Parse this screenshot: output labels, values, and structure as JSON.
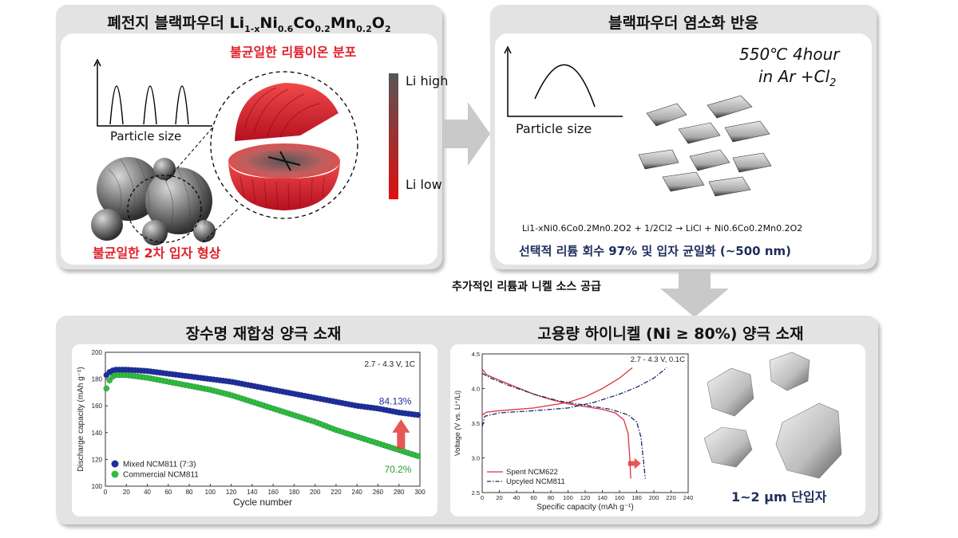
{
  "panel1": {
    "title_main": "폐전지 블랙파우더 Li",
    "title_sub1": "1-x",
    "title_ni": "Ni",
    "title_sub2": "0.6",
    "title_co": "Co",
    "title_sub3": "0.2",
    "title_mn": "Mn",
    "title_sub4": "0.2",
    "title_o": "O",
    "title_sub5": "2",
    "dist_label": "불균일한 리튬이온 분포",
    "particle_size_label": "Particle size",
    "li_high": "Li high",
    "li_low": "Li low",
    "shape_label": "불균일한 2차 입자 형상"
  },
  "panel2": {
    "title": "블랙파우더 염소화 반응",
    "particle_size_label": "Particle size",
    "condition_line1": "550℃ 4hour",
    "condition_line2_a": "in Ar +Cl",
    "condition_line2_sub": "2",
    "equation": "Li1-xNi0.6Co0.2Mn0.2O2 + 1/2Cl2 → LiCl + Ni0.6Co0.2Mn0.2O2",
    "result": "선택적 리튬 회수 97% 및 입자 균일화 (~500 nm)"
  },
  "arrow_label": "추가적인 리튬과 니켈 소스 공급",
  "panel3": {
    "title_left": "장수명 재합성 양극 소재",
    "title_right": "고용량 하이니켈 (Ni ≥ 80%) 양극 소재",
    "single_crystal_label": "1~2 μm 단입자"
  },
  "colors": {
    "blue_series": "#1f2f9a",
    "green_series": "#2fbf3a",
    "red_accent": "#e0202a",
    "navy_text": "#1f2d5c",
    "panel_gray": "#e3e3e3"
  },
  "chart_data": [
    {
      "type": "scatter",
      "annotation": "2.7 - 4.3 V, 1C",
      "xlabel": "Cycle number",
      "ylabel": "Discharge capacity (mAh g⁻¹)",
      "xlim": [
        0,
        300
      ],
      "ylim": [
        100,
        200
      ],
      "xticks": [
        0,
        20,
        40,
        60,
        80,
        100,
        120,
        140,
        160,
        180,
        200,
        220,
        240,
        260,
        280,
        300
      ],
      "yticks": [
        100,
        120,
        140,
        160,
        180,
        200
      ],
      "legend_position": "bottom-left",
      "series": [
        {
          "name": "Mixed NCM811 (7:3)",
          "color": "#1f2f9a",
          "retention_label": "84.13%",
          "points": [
            [
              1,
              183
            ],
            [
              5,
              186
            ],
            [
              10,
              187
            ],
            [
              20,
              187
            ],
            [
              40,
              186
            ],
            [
              60,
              184
            ],
            [
              80,
              182
            ],
            [
              100,
              180
            ],
            [
              120,
              178
            ],
            [
              140,
              175
            ],
            [
              160,
              172
            ],
            [
              180,
              169
            ],
            [
              200,
              166
            ],
            [
              220,
              163
            ],
            [
              240,
              160
            ],
            [
              260,
              158
            ],
            [
              280,
              155
            ],
            [
              300,
              153
            ]
          ]
        },
        {
          "name": "Commercial NCM811",
          "color": "#2fbf3a",
          "retention_label": "70.2%",
          "points": [
            [
              1,
              173
            ],
            [
              5,
              181
            ],
            [
              10,
              183
            ],
            [
              20,
              183
            ],
            [
              40,
              181
            ],
            [
              60,
              178
            ],
            [
              80,
              175
            ],
            [
              100,
              172
            ],
            [
              120,
              168
            ],
            [
              140,
              163
            ],
            [
              160,
              158
            ],
            [
              180,
              153
            ],
            [
              200,
              148
            ],
            [
              220,
              142
            ],
            [
              240,
              137
            ],
            [
              260,
              132
            ],
            [
              280,
              127
            ],
            [
              300,
              122
            ]
          ]
        }
      ]
    },
    {
      "type": "line",
      "annotation": "2.7 - 4.3 V, 0.1C",
      "xlabel": "Specific capacity (mAh g⁻¹)",
      "ylabel": "Voltage (V vs. Li⁺/Li)",
      "xlim": [
        0,
        240
      ],
      "ylim": [
        2.5,
        4.5
      ],
      "xticks": [
        0,
        20,
        40,
        60,
        80,
        100,
        120,
        140,
        160,
        180,
        200,
        220,
        240
      ],
      "yticks": [
        2.5,
        3.0,
        3.5,
        4.0,
        4.5
      ],
      "legend_position": "bottom-left",
      "series": [
        {
          "name": "Spent NCM622",
          "color": "#d9333f",
          "style": "solid",
          "charge": [
            [
              0,
              3.62
            ],
            [
              5,
              3.66
            ],
            [
              20,
              3.68
            ],
            [
              60,
              3.72
            ],
            [
              100,
              3.8
            ],
            [
              120,
              3.88
            ],
            [
              140,
              4.0
            ],
            [
              160,
              4.15
            ],
            [
              175,
              4.3
            ]
          ],
          "discharge": [
            [
              0,
              4.28
            ],
            [
              5,
              4.2
            ],
            [
              20,
              4.12
            ],
            [
              40,
              4.02
            ],
            [
              60,
              3.92
            ],
            [
              80,
              3.84
            ],
            [
              100,
              3.78
            ],
            [
              120,
              3.74
            ],
            [
              140,
              3.7
            ],
            [
              155,
              3.65
            ],
            [
              165,
              3.55
            ],
            [
              170,
              3.35
            ],
            [
              172,
              3.0
            ],
            [
              173,
              2.7
            ]
          ]
        },
        {
          "name": "Upcyled NCM811",
          "color": "#1a2a6b",
          "style": "dashdot",
          "charge": [
            [
              0,
              3.45
            ],
            [
              3,
              3.6
            ],
            [
              20,
              3.65
            ],
            [
              60,
              3.68
            ],
            [
              100,
              3.72
            ],
            [
              130,
              3.8
            ],
            [
              160,
              3.92
            ],
            [
              180,
              4.02
            ],
            [
              200,
              4.15
            ],
            [
              215,
              4.3
            ]
          ],
          "discharge": [
            [
              0,
              4.22
            ],
            [
              10,
              4.15
            ],
            [
              30,
              4.05
            ],
            [
              60,
              3.92
            ],
            [
              90,
              3.82
            ],
            [
              120,
              3.76
            ],
            [
              150,
              3.7
            ],
            [
              170,
              3.62
            ],
            [
              180,
              3.52
            ],
            [
              185,
              3.3
            ],
            [
              188,
              2.95
            ],
            [
              190,
              2.7
            ]
          ]
        }
      ]
    }
  ]
}
